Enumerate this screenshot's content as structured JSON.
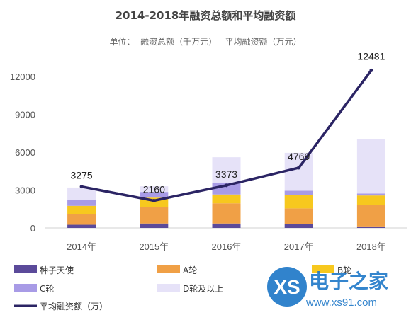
{
  "chart_data": {
    "type": "bar",
    "stacked": true,
    "title": "2014-2018年融资总额和平均融资额",
    "subtitle": "单位：  融资总额（千万元）   平均融资额（万元）",
    "categories": [
      "2014年",
      "2015年",
      "2016年",
      "2017年",
      "2018年"
    ],
    "ylim": [
      0,
      13500
    ],
    "yticks": [
      0,
      3000,
      6000,
      9000,
      12000
    ],
    "grid": false,
    "series": [
      {
        "name": "种子天使",
        "color": "#5b4a9a",
        "values": [
          250,
          350,
          350,
          300,
          120
        ]
      },
      {
        "name": "A轮",
        "color": "#f0a046",
        "values": [
          850,
          1300,
          1600,
          1250,
          1700
        ]
      },
      {
        "name": "B轮",
        "color": "#f7c81e",
        "values": [
          650,
          750,
          700,
          1050,
          750
        ]
      },
      {
        "name": "C轮",
        "color": "#a89be6",
        "values": [
          450,
          450,
          950,
          350,
          150
        ]
      },
      {
        "name": "D轮及以上",
        "color": "#e6e2f8",
        "values": [
          1000,
          450,
          2000,
          3000,
          4300
        ]
      }
    ],
    "line": {
      "name": "平均融资额（万）",
      "color": "#2b2464",
      "values": [
        3275,
        2160,
        3373,
        4769,
        12481
      ],
      "labels": [
        "3275",
        "2160",
        "3373",
        "4769",
        "12481"
      ]
    },
    "legend_position": "bottom"
  },
  "watermark": {
    "logo_text": "XS",
    "name": "电子之家",
    "url": "www.xs91.com"
  }
}
